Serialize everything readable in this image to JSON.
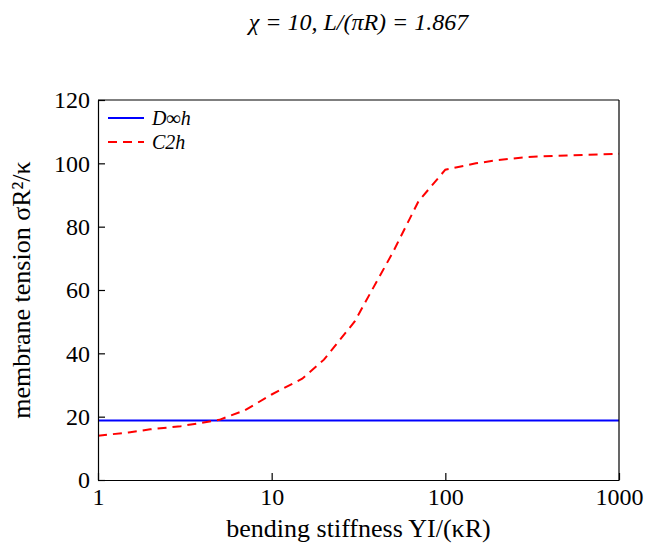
{
  "chart_data": {
    "type": "line",
    "title": "χ = 10, L/(πR) = 1.867",
    "x_label": "bending stiffness YI/(κR)",
    "y_label": "membrane tension σR²/κ",
    "log": "x",
    "xlim": [
      1,
      1000
    ],
    "ylim": [
      0,
      120
    ],
    "xticks": [
      1,
      10,
      100,
      1000
    ],
    "yticks": [
      0,
      20,
      40,
      60,
      80,
      100,
      120
    ],
    "grid": false,
    "legend": "upper left",
    "series": [
      {
        "name": "D∞h",
        "color": "#0000ff",
        "line_style": "solid",
        "x": [
          1,
          1000
        ],
        "values": [
          18.8,
          18.8
        ]
      },
      {
        "name": "C2h",
        "color": "#ff0000",
        "line_style": "dashed",
        "x": [
          1,
          1.5,
          2,
          3,
          5,
          7,
          10,
          15,
          20,
          30,
          50,
          70,
          100,
          150,
          200,
          300,
          500,
          1000
        ],
        "values": [
          14,
          15,
          16,
          17,
          19,
          22,
          27,
          32,
          38,
          50,
          72,
          88,
          98,
          100,
          101,
          102,
          102.5,
          103
        ]
      }
    ]
  }
}
